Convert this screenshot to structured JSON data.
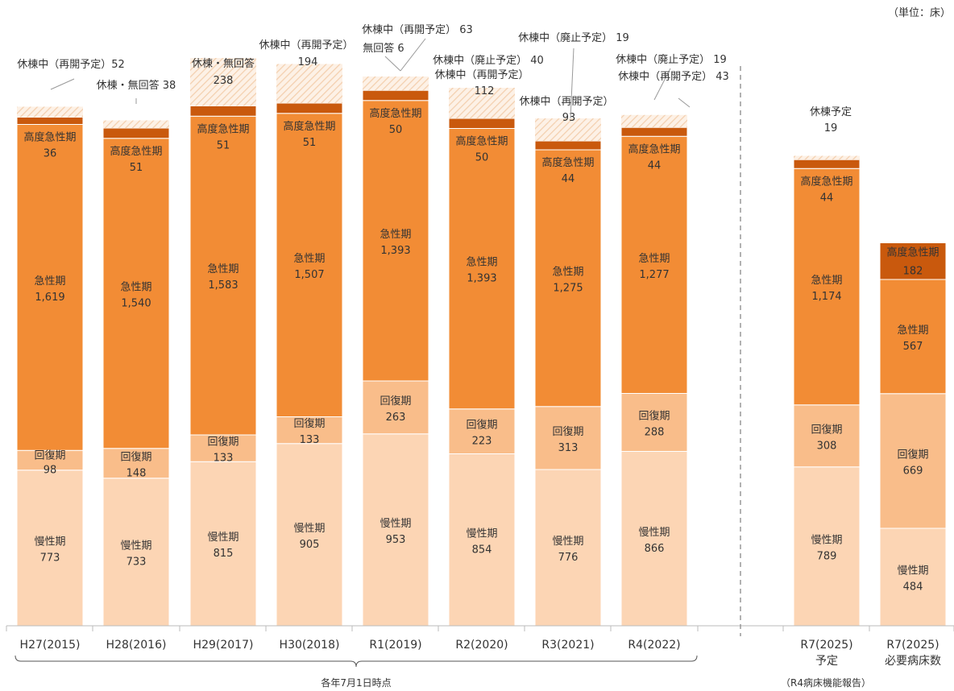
{
  "chart_data": {
    "type": "bar",
    "stacked": true,
    "unit_label": "（単位：床）",
    "categories": [
      "H27(2015)",
      "H28(2016)",
      "H29(2017)",
      "H30(2018)",
      "R1(2019)",
      "R2(2020)",
      "R3(2021)",
      "R4(2022)",
      "R7(2025)予定",
      "R7(2025)必要病床数"
    ],
    "category_lines": [
      [
        "H27(2015)"
      ],
      [
        "H28(2016)"
      ],
      [
        "H29(2017)"
      ],
      [
        "H30(2018)"
      ],
      [
        "R1(2019)"
      ],
      [
        "R2(2020)"
      ],
      [
        "R3(2021)"
      ],
      [
        "R4(2022)"
      ],
      [
        "R7(2025)",
        "予定"
      ],
      [
        "R7(2025)",
        "必要病床数"
      ]
    ],
    "series": [
      {
        "name": "慢性期",
        "color": "#fcd5b4",
        "values": [
          773,
          733,
          815,
          905,
          953,
          854,
          776,
          866,
          789,
          484
        ]
      },
      {
        "name": "回復期",
        "color": "#f9bd8a",
        "values": [
          98,
          148,
          133,
          133,
          263,
          223,
          313,
          288,
          308,
          669
        ]
      },
      {
        "name": "急性期",
        "color": "#f28c35",
        "values": [
          1619,
          1540,
          1583,
          1507,
          1393,
          1393,
          1275,
          1277,
          1174,
          567
        ]
      },
      {
        "name": "高度急性期",
        "color": "#c9590d",
        "values": [
          36,
          51,
          51,
          51,
          50,
          50,
          44,
          44,
          44,
          182
        ]
      }
    ],
    "value_labels": [
      [
        "773",
        "98",
        "1,619",
        "36"
      ],
      [
        "733",
        "148",
        "1,540",
        "51"
      ],
      [
        "815",
        "133",
        "1,583",
        "51"
      ],
      [
        "905",
        "133",
        "1,507",
        "51"
      ],
      [
        "953",
        "263",
        "1,393",
        "50"
      ],
      [
        "854",
        "223",
        "1,393",
        "50"
      ],
      [
        "776",
        "313",
        "1,275",
        "44"
      ],
      [
        "866",
        "288",
        "1,277",
        "44"
      ],
      [
        "789",
        "308",
        "1,174",
        "44"
      ],
      [
        "484",
        "669",
        "567",
        "182"
      ]
    ],
    "idle_segments": [
      [
        {
          "label": "休棟中（再開予定）52",
          "value": 52
        }
      ],
      [
        {
          "label": "休棟・無回答 38",
          "value": 38
        }
      ],
      [
        {
          "label": "休棟・無回答",
          "value": 238,
          "value_text": "238"
        }
      ],
      [
        {
          "label": "休棟中（再開予定）",
          "value": 194,
          "value_text": "194"
        }
      ],
      [
        {
          "label": "無回答 6",
          "value": 6
        },
        {
          "label": "休棟中（再開予定） 63",
          "value": 63
        }
      ],
      [
        {
          "label": "休棟中（廃止予定） 40",
          "value": 40
        },
        {
          "label": "休棟中（再開予定）",
          "value": 112,
          "value_text": "112"
        }
      ],
      [
        {
          "label": "休棟中（再開予定）",
          "value": 93,
          "value_text": "93"
        },
        {
          "label": "休棟中（廃止予定） 19",
          "value": 19
        }
      ],
      [
        {
          "label": "休棟中（廃止予定） 19",
          "value": 19
        },
        {
          "label": "休棟中（再開予定） 43",
          "value": 43
        }
      ],
      [
        {
          "label": "休棟予定",
          "value": 19,
          "value_text": "19"
        }
      ],
      []
    ],
    "group_label": "各年7月1日時点",
    "group_label_2": "（R4病床機能報告）",
    "ylim": [
      0,
      2800
    ],
    "grid": false,
    "legend": "none"
  }
}
